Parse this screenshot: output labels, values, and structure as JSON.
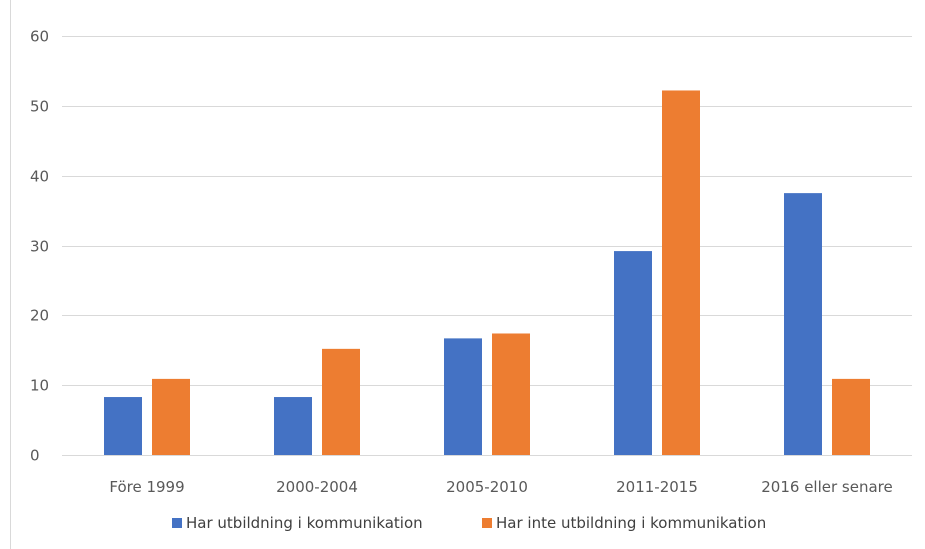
{
  "chart_data": {
    "type": "bar",
    "categories": [
      "Före 1999",
      "2000-2004",
      "2005-2010",
      "2011-2015",
      "2016 eller senare"
    ],
    "series": [
      {
        "name": "Har utbildning i kommunikation",
        "color": "#4472C4",
        "values": [
          8.3,
          8.3,
          16.7,
          29.2,
          37.5
        ]
      },
      {
        "name": "Har inte utbildning i kommunikation",
        "color": "#ED7D31",
        "values": [
          10.9,
          15.2,
          17.4,
          52.2,
          10.9
        ]
      }
    ],
    "ylim": [
      0,
      60
    ],
    "yticks": [
      0,
      10,
      20,
      30,
      40,
      50,
      60
    ],
    "grid": true,
    "legend_position": "bottom",
    "title": "",
    "xlabel": "",
    "ylabel": ""
  }
}
